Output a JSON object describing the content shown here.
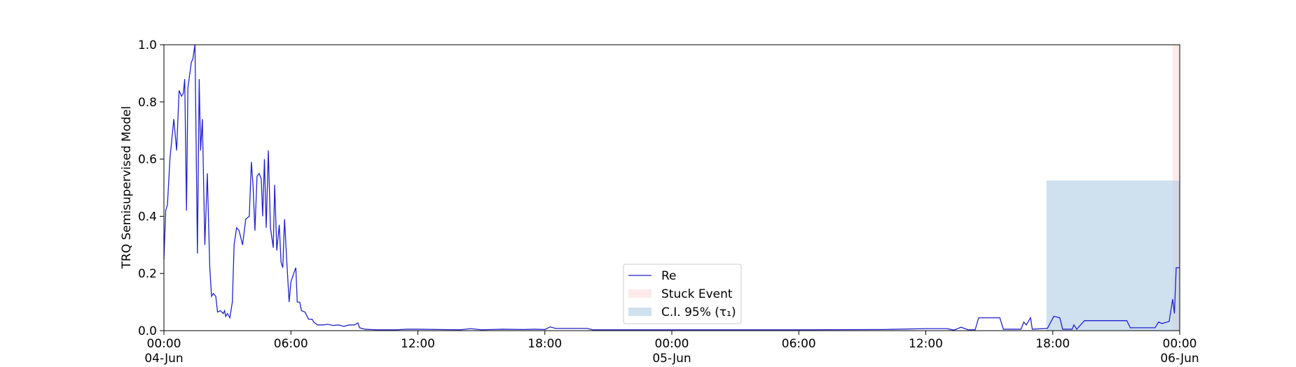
{
  "chart_data": {
    "type": "line",
    "ylabel": "TRQ Semisupervised Model",
    "x": [
      "1990-06-04T00:00",
      "1990-06-04T00:05",
      "1990-06-04T00:10",
      "1990-06-04T00:17",
      "1990-06-04T00:28",
      "1990-06-04T00:36",
      "1990-06-04T00:43",
      "1990-06-04T00:50",
      "1990-06-04T00:55",
      "1990-06-04T00:59",
      "1990-06-04T01:04",
      "1990-06-04T01:08",
      "1990-06-04T01:18",
      "1990-06-04T01:22",
      "1990-06-04T01:28",
      "1990-06-04T01:35",
      "1990-06-04T01:40",
      "1990-06-04T01:44",
      "1990-06-04T01:49",
      "1990-06-04T01:56",
      "1990-06-04T02:03",
      "1990-06-04T02:10",
      "1990-06-04T02:15",
      "1990-06-04T02:20",
      "1990-06-04T02:27",
      "1990-06-04T02:32",
      "1990-06-04T02:40",
      "1990-06-04T02:48",
      "1990-06-04T02:52",
      "1990-06-04T02:55",
      "1990-06-04T03:00",
      "1990-06-04T03:07",
      "1990-06-04T03:14",
      "1990-06-04T03:19",
      "1990-06-04T03:26",
      "1990-06-04T03:33",
      "1990-06-04T03:43",
      "1990-06-04T03:52",
      "1990-06-04T04:02",
      "1990-06-04T04:08",
      "1990-06-04T04:13",
      "1990-06-04T04:18",
      "1990-06-04T04:24",
      "1990-06-04T04:30",
      "1990-06-04T04:36",
      "1990-06-04T04:40",
      "1990-06-04T04:45",
      "1990-06-04T04:50",
      "1990-06-04T04:56",
      "1990-06-04T05:02",
      "1990-06-04T05:10",
      "1990-06-04T05:14",
      "1990-06-04T05:20",
      "1990-06-04T05:27",
      "1990-06-04T05:32",
      "1990-06-04T05:37",
      "1990-06-04T05:42",
      "1990-06-04T05:48",
      "1990-06-04T05:55",
      "1990-06-04T06:00",
      "1990-06-04T06:08",
      "1990-06-04T06:14",
      "1990-06-04T06:18",
      "1990-06-04T06:25",
      "1990-06-04T06:30",
      "1990-06-04T06:40",
      "1990-06-04T06:50",
      "1990-06-04T07:00",
      "1990-06-04T07:05",
      "1990-06-04T07:15",
      "1990-06-04T07:30",
      "1990-06-04T07:45",
      "1990-06-04T08:00",
      "1990-06-04T08:15",
      "1990-06-04T08:30",
      "1990-06-04T08:45",
      "1990-06-04T09:00",
      "1990-06-04T09:10",
      "1990-06-04T09:15",
      "1990-06-04T09:30",
      "1990-06-04T10:00",
      "1990-06-04T11:00",
      "1990-06-04T11:30",
      "1990-06-04T12:00",
      "1990-06-04T13:00",
      "1990-06-04T14:00",
      "1990-06-04T14:30",
      "1990-06-04T15:00",
      "1990-06-04T15:30",
      "1990-06-04T16:00",
      "1990-06-04T17:00",
      "1990-06-04T17:30",
      "1990-06-04T18:00",
      "1990-06-04T18:15",
      "1990-06-04T18:30",
      "1990-06-04T19:00",
      "1990-06-04T20:00",
      "1990-06-04T20:15",
      "1990-06-04T22:00",
      "1990-06-05T00:00",
      "1990-06-05T06:00",
      "1990-06-05T10:00",
      "1990-06-05T12:00",
      "1990-06-05T13:00",
      "1990-06-05T13:20",
      "1990-06-05T13:40",
      "1990-06-05T14:00",
      "1990-06-05T14:20",
      "1990-06-05T14:30",
      "1990-06-05T15:30",
      "1990-06-05T15:40",
      "1990-06-05T16:30",
      "1990-06-05T16:38",
      "1990-06-05T16:45",
      "1990-06-05T16:57",
      "1990-06-05T17:02",
      "1990-06-05T17:45",
      "1990-06-05T18:03",
      "1990-06-05T18:20",
      "1990-06-05T18:28",
      "1990-06-05T18:55",
      "1990-06-05T19:00",
      "1990-06-05T19:08",
      "1990-06-05T19:30",
      "1990-06-05T21:30",
      "1990-06-05T21:40",
      "1990-06-05T22:50",
      "1990-06-05T23:00",
      "1990-06-05T23:10",
      "1990-06-05T23:30",
      "1990-06-05T23:40",
      "1990-06-05T23:45",
      "1990-06-05T23:50",
      "1990-06-06T00:00"
    ],
    "series": [
      {
        "name": "Re",
        "color": "#2222cc",
        "values": [
          0.25,
          0.42,
          0.44,
          0.6,
          0.74,
          0.63,
          0.84,
          0.82,
          0.83,
          0.88,
          0.42,
          0.85,
          0.94,
          0.95,
          1.0,
          0.27,
          0.88,
          0.63,
          0.74,
          0.3,
          0.55,
          0.22,
          0.12,
          0.13,
          0.12,
          0.065,
          0.07,
          0.06,
          0.07,
          0.05,
          0.06,
          0.045,
          0.1,
          0.3,
          0.36,
          0.35,
          0.3,
          0.39,
          0.4,
          0.59,
          0.5,
          0.35,
          0.54,
          0.55,
          0.53,
          0.4,
          0.6,
          0.36,
          0.63,
          0.36,
          0.29,
          0.51,
          0.28,
          0.37,
          0.24,
          0.22,
          0.39,
          0.25,
          0.1,
          0.17,
          0.2,
          0.22,
          0.1,
          0.1,
          0.07,
          0.065,
          0.04,
          0.04,
          0.03,
          0.02,
          0.02,
          0.022,
          0.018,
          0.02,
          0.015,
          0.02,
          0.02,
          0.027,
          0.01,
          0.005,
          0.003,
          0.003,
          0.005,
          0.005,
          0.004,
          0.003,
          0.007,
          0.003,
          0.004,
          0.005,
          0.004,
          0.005,
          0.004,
          0.013,
          0.008,
          0.008,
          0.008,
          0.003,
          0.003,
          0.003,
          0.003,
          0.004,
          0.007,
          0.007,
          0.002,
          0.012,
          0.003,
          0.003,
          0.045,
          0.045,
          0.005,
          0.005,
          0.03,
          0.02,
          0.045,
          0.005,
          0.008,
          0.05,
          0.045,
          0.005,
          0.005,
          0.02,
          0.005,
          0.035,
          0.035,
          0.01,
          0.01,
          0.03,
          0.025,
          0.032,
          0.11,
          0.06,
          0.22,
          0.22
        ]
      }
    ],
    "spans": [
      {
        "name": "Stuck Event",
        "color": "#ffdede",
        "start": "1990-06-05T23:40",
        "end": "1990-06-06T00:00"
      },
      {
        "name": "C.I. 95% (τ₁)",
        "color": "#b5cfe6",
        "start": "1990-06-05T17:42",
        "end": "1990-06-06T00:00",
        "value": 0.525
      }
    ],
    "xlim": [
      "1990-06-04T00:00",
      "1990-06-06T00:00"
    ],
    "xticks": [
      {
        "value": "1990-06-04T00:00",
        "label": "00:00\n04-Jun\n1990"
      },
      {
        "value": "1990-06-04T06:00",
        "label": "06:00"
      },
      {
        "value": "1990-06-04T12:00",
        "label": "12:00"
      },
      {
        "value": "1990-06-04T18:00",
        "label": "18:00"
      },
      {
        "value": "1990-06-05T00:00",
        "label": "00:00\n05-Jun"
      },
      {
        "value": "1990-06-05T06:00",
        "label": "06:00"
      },
      {
        "value": "1990-06-05T12:00",
        "label": "12:00"
      },
      {
        "value": "1990-06-05T18:00",
        "label": "18:00"
      },
      {
        "value": "1990-06-06T00:00",
        "label": "00:00\n06-Jun"
      }
    ],
    "ylim": [
      0,
      1
    ],
    "yticks": [
      {
        "value": 0,
        "label": "0.0"
      },
      0.2,
      0.4,
      0.6,
      0.8,
      {
        "value": 1,
        "label": "1.0"
      }
    ],
    "legend": "lower center"
  }
}
